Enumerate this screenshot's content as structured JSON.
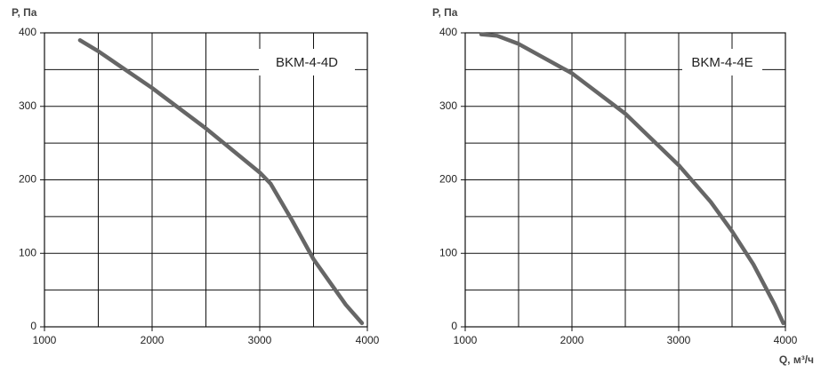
{
  "chart_data": [
    {
      "type": "line",
      "ylabel": "P, Па",
      "annotation": "BKM-4-4D",
      "xlim": [
        1000,
        4000
      ],
      "ylim": [
        0,
        400
      ],
      "xticks": [
        1000,
        2000,
        3000,
        4000
      ],
      "yticks": [
        0,
        100,
        200,
        300,
        400
      ],
      "xgrid": [
        1000,
        1500,
        2000,
        2500,
        3000,
        3500,
        4000
      ],
      "ygrid": [
        0,
        50,
        100,
        150,
        200,
        250,
        300,
        350,
        400
      ],
      "series": [
        {
          "color": "#666666",
          "x": [
            1330,
            1500,
            2000,
            2500,
            3000,
            3100,
            3300,
            3500,
            3800,
            3950
          ],
          "values": [
            390,
            375,
            325,
            270,
            210,
            195,
            145,
            92,
            30,
            5
          ]
        }
      ]
    },
    {
      "type": "line",
      "ylabel": "P, Па",
      "xlabel": "Q, м³/ч",
      "annotation": "BKM-4-4E",
      "xlim": [
        1000,
        4000
      ],
      "ylim": [
        0,
        400
      ],
      "xticks": [
        1000,
        2000,
        3000,
        4000
      ],
      "yticks": [
        0,
        100,
        200,
        300,
        400
      ],
      "xgrid": [
        1000,
        1500,
        2000,
        2500,
        3000,
        3500,
        4000
      ],
      "ygrid": [
        0,
        50,
        100,
        150,
        200,
        250,
        300,
        350,
        400
      ],
      "series": [
        {
          "color": "#666666",
          "x": [
            1150,
            1300,
            1500,
            2000,
            2500,
            3000,
            3300,
            3500,
            3700,
            3900,
            3980
          ],
          "values": [
            398,
            396,
            385,
            345,
            290,
            220,
            170,
            130,
            85,
            30,
            5
          ]
        }
      ]
    }
  ]
}
